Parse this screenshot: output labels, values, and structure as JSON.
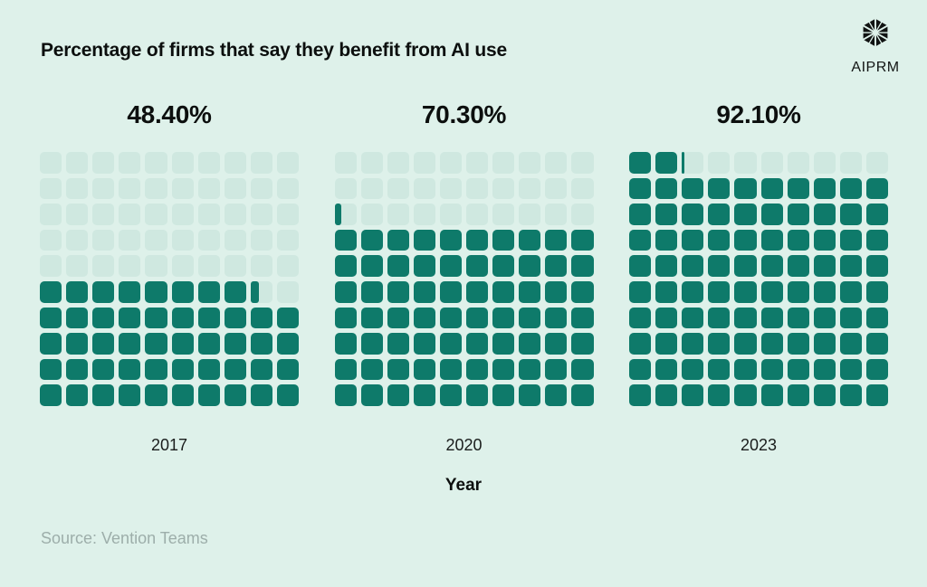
{
  "header": {
    "title": "Percentage of firms that say they benefit from AI use",
    "logo_text": "AIPRM",
    "logo_icon": "aiprm-cube-icon"
  },
  "chart_data": {
    "type": "waffle",
    "title": "Percentage of firms that say they benefit from AI use",
    "xlabel": "Year",
    "categories": [
      "2017",
      "2020",
      "2023"
    ],
    "values": [
      48.4,
      70.3,
      92.1
    ],
    "value_labels": [
      "48.40%",
      "70.30%",
      "92.10%"
    ],
    "grid_rows": 10,
    "grid_cols": 10,
    "unit_percent_per_cell": 1,
    "fill_order": "bottom-to-top, left-to-right, partial sliver after last full cell",
    "legend": "none",
    "colors": {
      "filled": "#0e7a6a",
      "empty": "#cfe8e0",
      "background": "#def1ea",
      "text": "#0c0f0e",
      "source_text": "#9daeaa"
    }
  },
  "footer": {
    "source": "Source: Vention Teams"
  }
}
